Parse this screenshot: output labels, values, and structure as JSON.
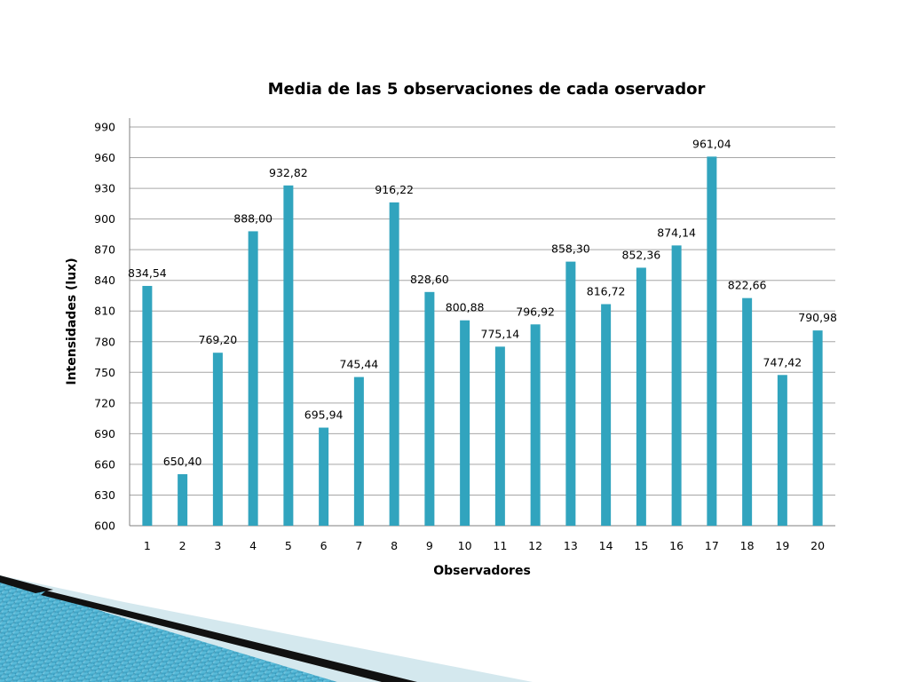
{
  "chart_data": {
    "type": "bar",
    "title": "Media de las 5 observaciones de cada oservador",
    "xlabel": "Observadores",
    "ylabel": "Intensidades (lux)",
    "categories": [
      "1",
      "2",
      "3",
      "4",
      "5",
      "6",
      "7",
      "8",
      "9",
      "10",
      "11",
      "12",
      "13",
      "14",
      "15",
      "16",
      "17",
      "18",
      "19",
      "20"
    ],
    "values": [
      834.54,
      650.4,
      769.2,
      888.0,
      932.82,
      695.94,
      745.44,
      916.22,
      828.6,
      800.88,
      775.14,
      796.92,
      858.3,
      816.72,
      852.36,
      874.14,
      961.04,
      822.66,
      747.42,
      790.98
    ],
    "data_labels": [
      "834,54",
      "650,40",
      "769,20",
      "888,00",
      "932,82",
      "695,94",
      "745,44",
      "916,22",
      "828,60",
      "800,88",
      "775,14",
      "796,92",
      "858,30",
      "816,72",
      "852,36",
      "874,14",
      "961,04",
      "822,66",
      "747,42",
      "790,98"
    ],
    "ylim": [
      600,
      990
    ],
    "yticks": [
      600,
      630,
      660,
      690,
      720,
      750,
      780,
      810,
      840,
      870,
      900,
      930,
      960,
      990
    ],
    "grid": true,
    "legend": "none",
    "bar_color": "#31A4BE",
    "grid_color": "#A6A6A6"
  },
  "decoration": {
    "colors": {
      "teal_dark": "#1A7CA0",
      "teal_light": "#5EC0DE",
      "black": "#111111",
      "pale": "#D4E8EE"
    }
  }
}
